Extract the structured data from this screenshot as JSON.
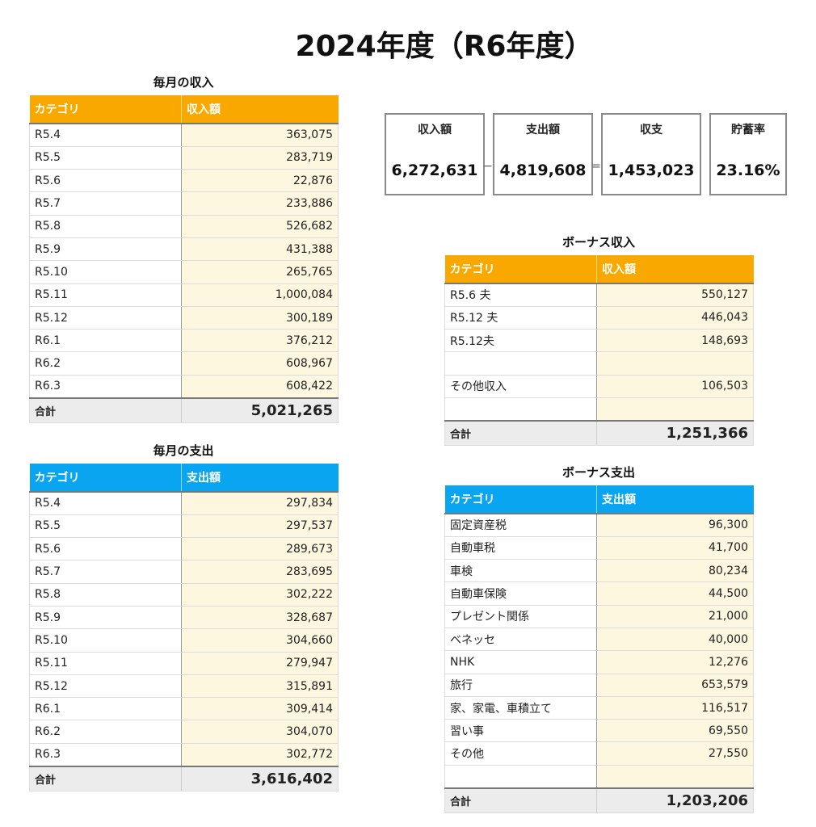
{
  "title": "2024年度（R6年度）",
  "monthly_income": {
    "section_title": "毎月の収入",
    "col_category": "カテゴリ",
    "col_amount": "収入額",
    "rows": [
      {
        "category": "R5.4",
        "amount": "363,075"
      },
      {
        "category": "R5.5",
        "amount": "283,719"
      },
      {
        "category": "R5.6",
        "amount": "22,876"
      },
      {
        "category": "R5.7",
        "amount": "233,886"
      },
      {
        "category": "R5.8",
        "amount": "526,682"
      },
      {
        "category": "R5.9",
        "amount": "431,388"
      },
      {
        "category": "R5.10",
        "amount": "265,765"
      },
      {
        "category": "R5.11",
        "amount": "1,000,084"
      },
      {
        "category": "R5.12",
        "amount": "300,189"
      },
      {
        "category": "R6.1",
        "amount": "376,212"
      },
      {
        "category": "R6.2",
        "amount": "608,967"
      },
      {
        "category": "R6.3",
        "amount": "608,422"
      }
    ],
    "total_label": "合計",
    "total_value": "5,021,265"
  },
  "monthly_expense": {
    "section_title": "毎月の支出",
    "col_category": "カテゴリ",
    "col_amount": "支出額",
    "rows": [
      {
        "category": "R5.4",
        "amount": "297,834"
      },
      {
        "category": "R5.5",
        "amount": "297,537"
      },
      {
        "category": "R5.6",
        "amount": "289,673"
      },
      {
        "category": "R5.7",
        "amount": "283,695"
      },
      {
        "category": "R5.8",
        "amount": "302,222"
      },
      {
        "category": "R5.9",
        "amount": "328,687"
      },
      {
        "category": "R5.10",
        "amount": "304,660"
      },
      {
        "category": "R5.11",
        "amount": "279,947"
      },
      {
        "category": "R5.12",
        "amount": "315,891"
      },
      {
        "category": "R6.1",
        "amount": "309,414"
      },
      {
        "category": "R6.2",
        "amount": "304,070"
      },
      {
        "category": "R6.3",
        "amount": "302,772"
      }
    ],
    "total_label": "合計",
    "total_value": "3,616,402"
  },
  "summary": {
    "income_label": "収入額",
    "income_value": "6,272,631",
    "minus_sign": "−",
    "expense_label": "支出額",
    "expense_value": "4,819,608",
    "equals_sign": "=",
    "balance_label": "収支",
    "balance_value": "1,453,023",
    "savings_label": "貯蓄率",
    "savings_value": "23.16%"
  },
  "bonus_income": {
    "section_title": "ボーナス収入",
    "col_category": "カテゴリ",
    "col_amount": "収入額",
    "rows": [
      {
        "category": "R5.6 夫",
        "amount": "550,127"
      },
      {
        "category": "R5.12 夫",
        "amount": "446,043"
      },
      {
        "category": "R5.12夫",
        "amount": "148,693"
      },
      {
        "category": "",
        "amount": ""
      },
      {
        "category": "その他収入",
        "amount": "106,503"
      },
      {
        "category": "",
        "amount": ""
      }
    ],
    "total_label": "合計",
    "total_value": "1,251,366"
  },
  "bonus_expense": {
    "section_title": "ボーナス支出",
    "col_category": "カテゴリ",
    "col_amount": "支出額",
    "rows": [
      {
        "category": "固定資産税",
        "amount": "96,300"
      },
      {
        "category": "自動車税",
        "amount": "41,700"
      },
      {
        "category": "車検",
        "amount": "80,234"
      },
      {
        "category": "自動車保険",
        "amount": "44,500"
      },
      {
        "category": "プレゼント関係",
        "amount": "21,000"
      },
      {
        "category": "ベネッセ",
        "amount": "40,000"
      },
      {
        "category": "NHK",
        "amount": "12,276"
      },
      {
        "category": "旅行",
        "amount": "653,579"
      },
      {
        "category": "家、家電、車積立て",
        "amount": "116,517"
      },
      {
        "category": "習い事",
        "amount": "69,550"
      },
      {
        "category": "その他",
        "amount": "27,550"
      },
      {
        "category": "",
        "amount": ""
      }
    ],
    "total_label": "合計",
    "total_value": "1,203,206"
  }
}
